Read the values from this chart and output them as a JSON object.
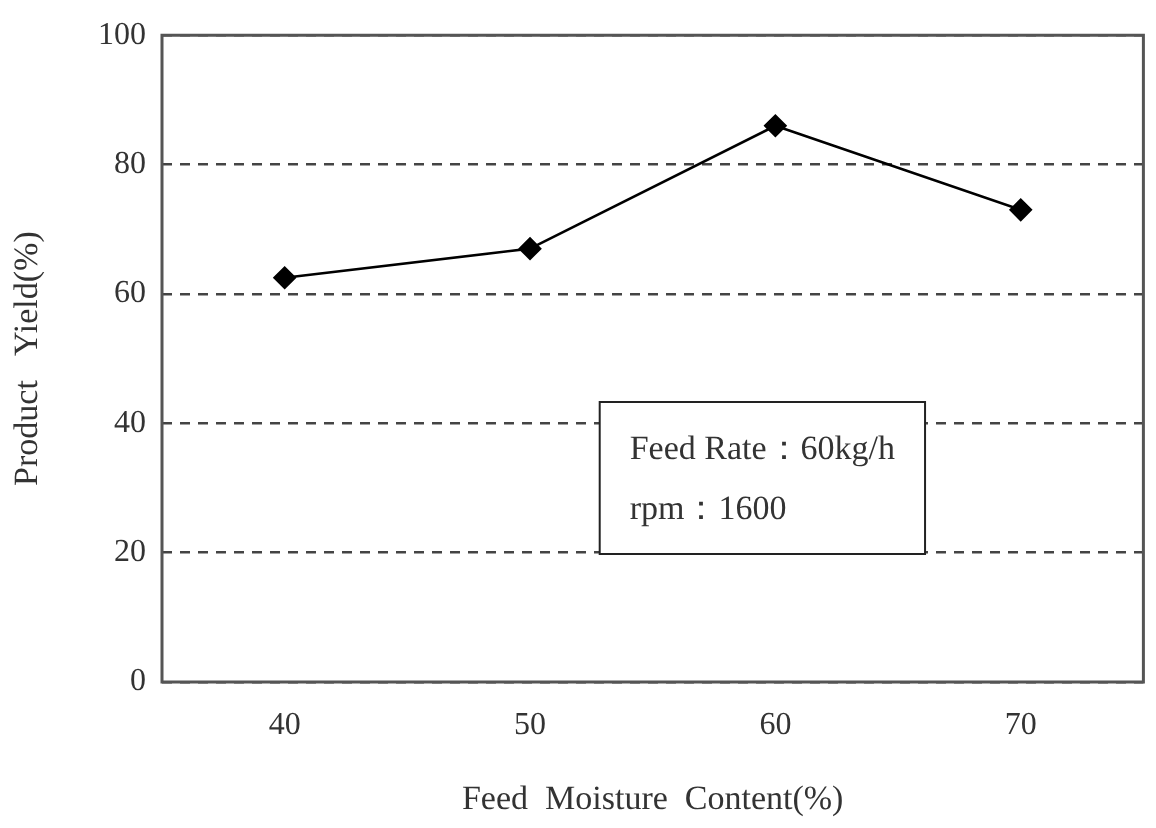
{
  "chart_data": {
    "type": "line",
    "xlabel": "Feed  Moisture  Content(%)",
    "ylabel": "Product   Yield(%)",
    "categories": [
      "40",
      "50",
      "60",
      "70"
    ],
    "series": [
      {
        "color": "#000000",
        "values": [
          62.5,
          67,
          86,
          73
        ]
      }
    ],
    "ylim": [
      0,
      100
    ],
    "yticks": [
      0,
      20,
      40,
      60,
      80,
      100
    ],
    "grid": "y",
    "legend": false,
    "marker": "diamond",
    "line_style": "solid",
    "annotations": [
      "Feed Rate：60kg/h",
      "rpm：1600"
    ]
  }
}
